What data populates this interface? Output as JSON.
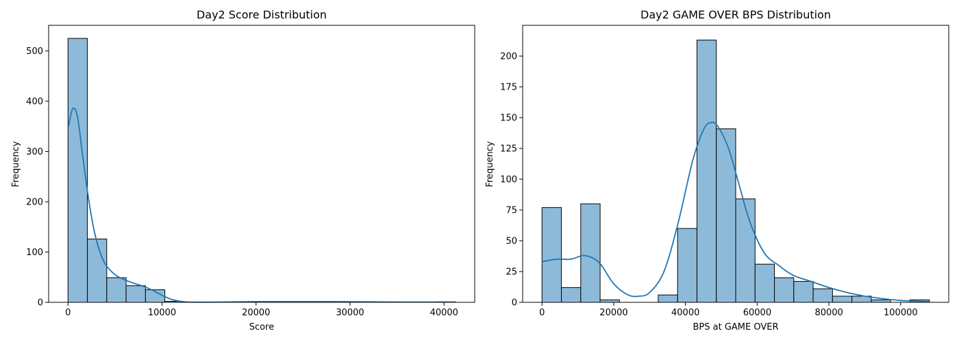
{
  "chart_data": [
    {
      "type": "bar",
      "subtype": "histogram_with_kde",
      "title": "Day2 Score Distribution",
      "xlabel": "Score",
      "ylabel": "Frequency",
      "xlim": [
        -2060,
        43260
      ],
      "ylim": [
        0,
        551
      ],
      "xticks": [
        0,
        10000,
        20000,
        30000,
        40000
      ],
      "xtick_labels": [
        "0",
        "10000",
        "20000",
        "30000",
        "40000"
      ],
      "yticks": [
        0,
        100,
        200,
        300,
        400,
        500
      ],
      "ytick_labels": [
        "0",
        "100",
        "200",
        "300",
        "400",
        "500"
      ],
      "bin_edges": [
        0,
        2060,
        4120,
        6180,
        8240,
        10300,
        12360,
        14420,
        16480,
        18540,
        20600,
        22660,
        24720,
        26780,
        28840,
        30900,
        32960,
        35020,
        37080,
        39140,
        41200
      ],
      "counts": [
        525,
        126,
        49,
        33,
        25,
        2,
        0,
        0,
        0,
        0,
        1,
        0,
        1,
        0,
        1,
        0,
        0,
        0,
        0,
        1
      ],
      "kde": {
        "x": [
          0,
          500,
          1000,
          1500,
          2000,
          2500,
          3000,
          3500,
          4000,
          5000,
          6000,
          7000,
          8000,
          9000,
          10000,
          11000,
          12000,
          13000,
          16000,
          20000,
          24000,
          28000,
          32000,
          36000,
          41200
        ],
        "y": [
          345,
          385,
          370,
          300,
          230,
          170,
          125,
          95,
          75,
          55,
          45,
          38,
          32,
          24,
          14,
          6,
          2,
          0.5,
          0.5,
          1.5,
          1.5,
          1.5,
          1,
          0.5,
          0.5
        ]
      },
      "colors": {
        "bar_fill": "#8ebad9",
        "bar_edge": "#000000",
        "kde_line": "#1f77b4"
      },
      "grid": false
    },
    {
      "type": "bar",
      "subtype": "histogram_with_kde",
      "title": "Day2 GAME OVER BPS Distribution",
      "xlabel": "BPS at GAME OVER",
      "ylabel": "Frequency",
      "xlim": [
        -5400,
        113400
      ],
      "ylim": [
        0,
        225
      ],
      "xticks": [
        0,
        20000,
        40000,
        60000,
        80000,
        100000
      ],
      "xtick_labels": [
        "0",
        "20000",
        "40000",
        "60000",
        "80000",
        "100000"
      ],
      "yticks": [
        0,
        25,
        50,
        75,
        100,
        125,
        150,
        175,
        200
      ],
      "ytick_labels": [
        "0",
        "25",
        "50",
        "75",
        "100",
        "125",
        "150",
        "175",
        "200"
      ],
      "bin_edges": [
        0,
        5400,
        10800,
        16200,
        21600,
        27000,
        32400,
        37800,
        43200,
        48600,
        54000,
        59400,
        64800,
        70200,
        75600,
        81000,
        86400,
        91800,
        97200,
        102600,
        108000
      ],
      "counts": [
        77,
        12,
        80,
        2,
        0,
        0,
        6,
        60,
        213,
        141,
        84,
        31,
        20,
        17,
        11,
        5,
        5,
        2,
        0,
        2
      ],
      "kde": {
        "x": [
          0,
          4000,
          8000,
          12000,
          16000,
          20000,
          24000,
          27000,
          30000,
          34000,
          38000,
          42000,
          45000,
          47000,
          49000,
          52000,
          55000,
          58000,
          62000,
          66000,
          70000,
          75000,
          80000,
          85000,
          90000,
          95000,
          100000,
          108000
        ],
        "y": [
          33,
          35,
          35,
          38,
          32,
          15,
          6,
          5,
          8,
          25,
          65,
          115,
          140,
          146,
          143,
          125,
          95,
          65,
          40,
          30,
          22,
          17,
          12,
          8,
          5,
          3,
          1.5,
          0.5
        ]
      },
      "colors": {
        "bar_fill": "#8ebad9",
        "bar_edge": "#000000",
        "kde_line": "#1f77b4"
      },
      "grid": false
    }
  ]
}
